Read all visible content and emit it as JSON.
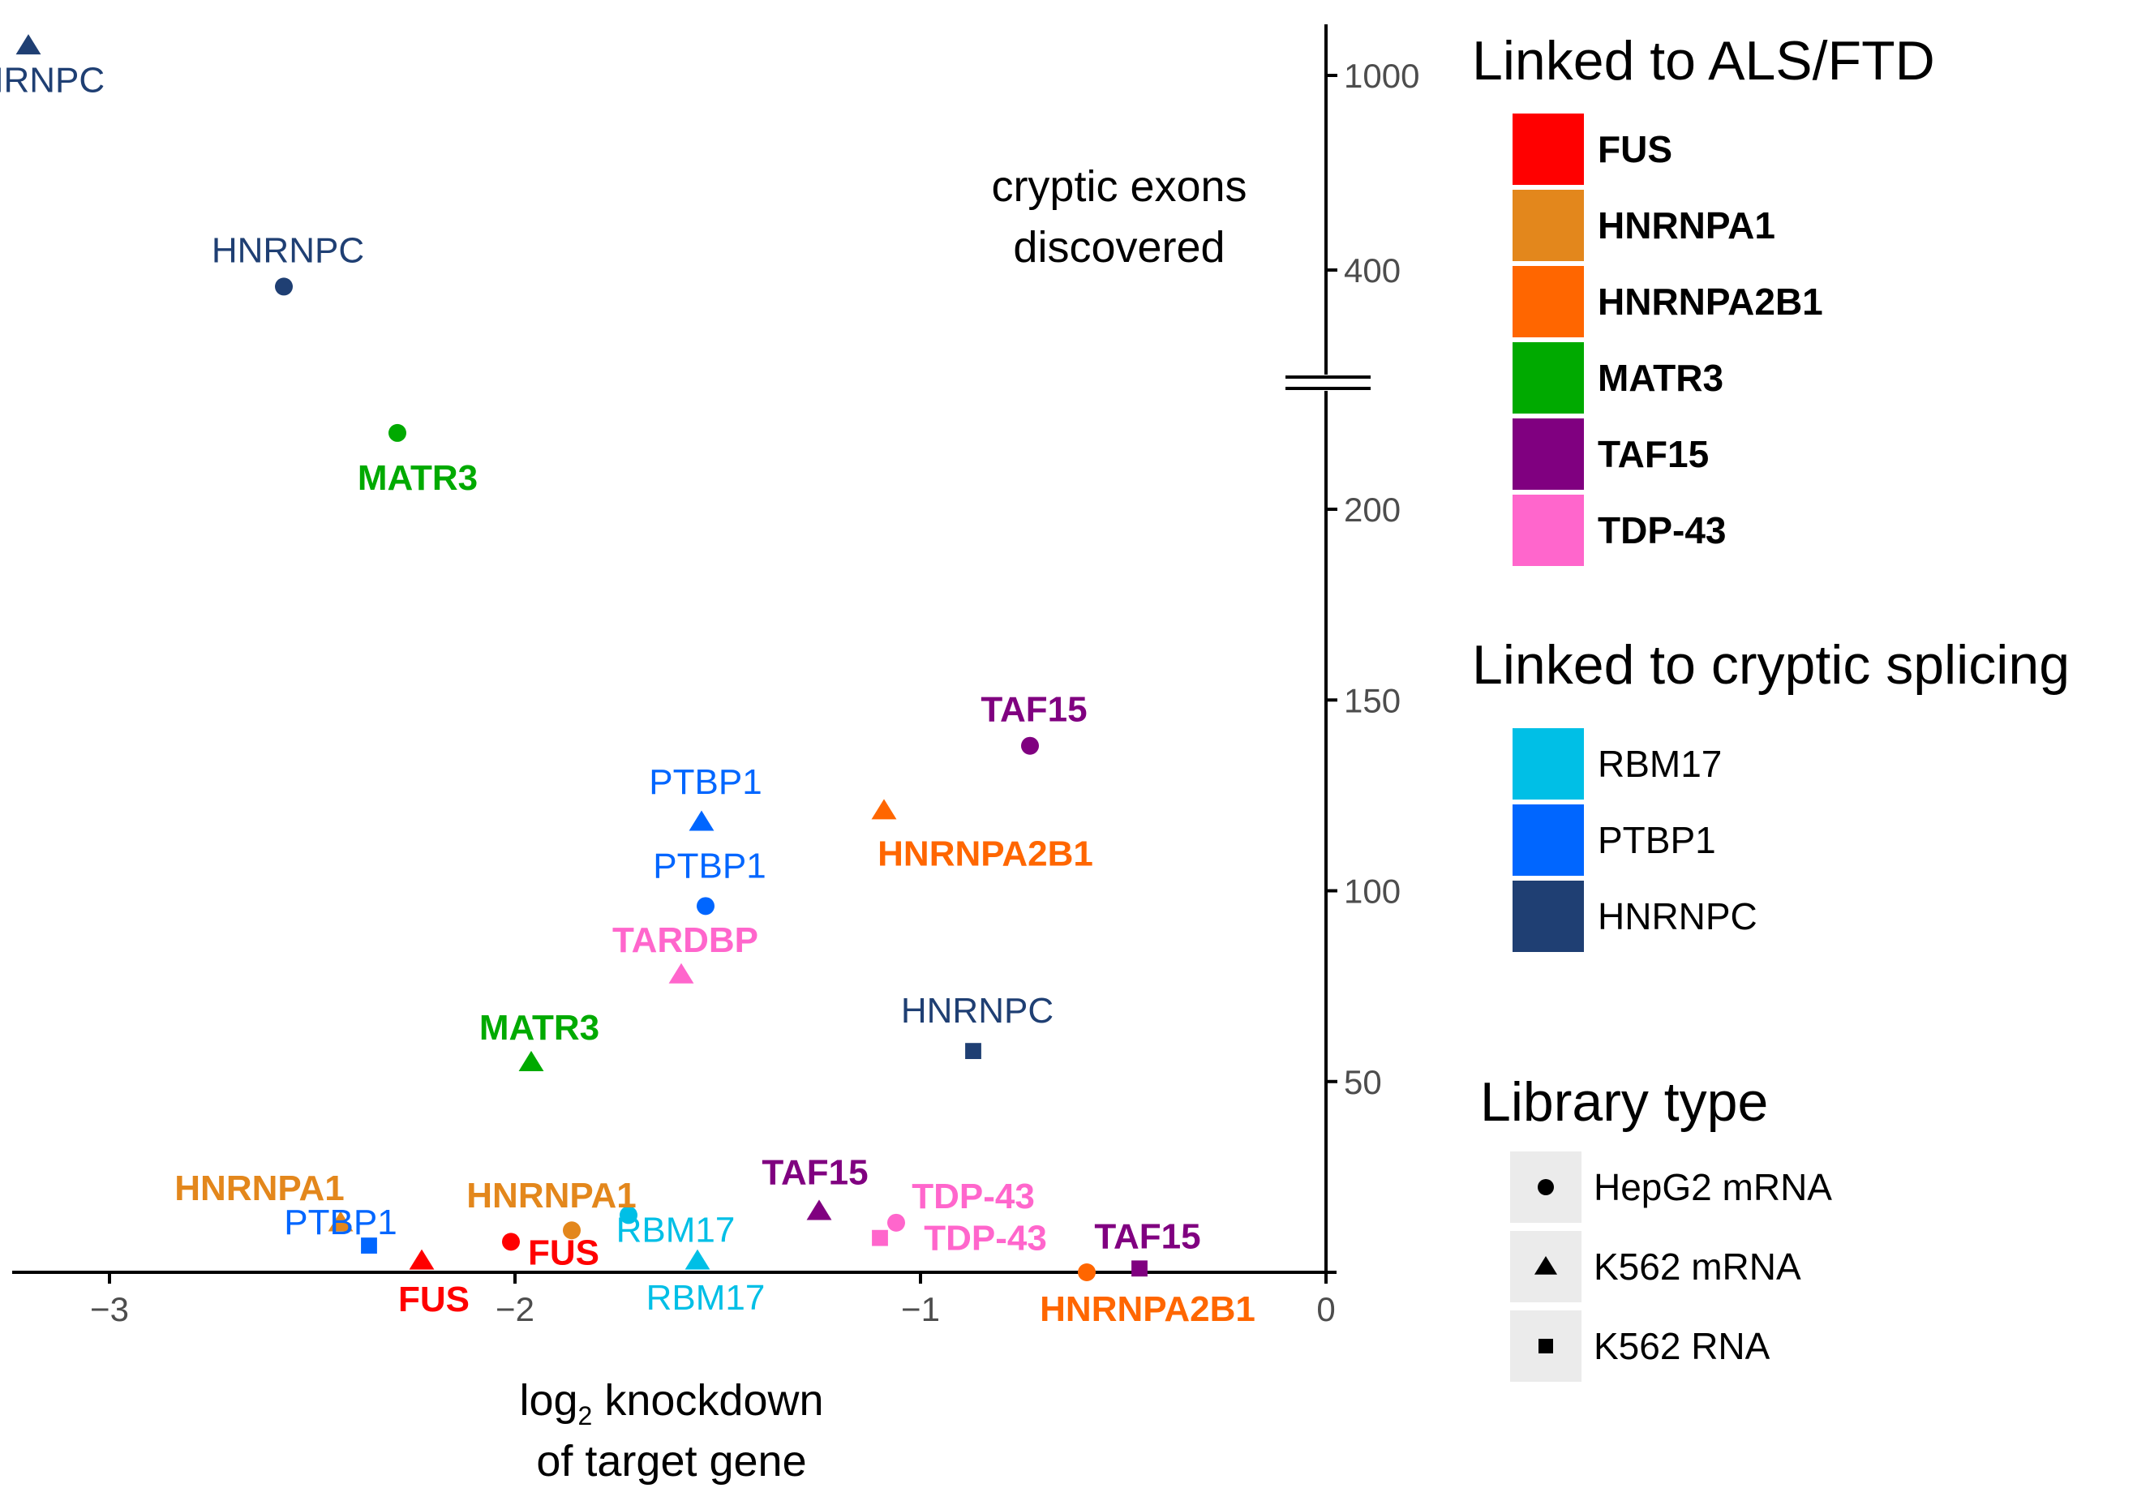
{
  "chart_data": {
    "type": "scatter",
    "xlabel_line1": "log",
    "xlabel_sub": "2",
    "xlabel_line1_rest": " knockdown",
    "xlabel_line2": "of target gene",
    "ylabel_line1": "cryptic exons",
    "ylabel_line2": "discovered",
    "x_ticks": [
      {
        "value": -3,
        "label": "−3"
      },
      {
        "value": -2,
        "label": "−2"
      },
      {
        "value": -1,
        "label": "−1"
      },
      {
        "value": 0,
        "label": "0"
      }
    ],
    "y_ticks": [
      {
        "value": 50,
        "label": "50"
      },
      {
        "value": 100,
        "label": "100"
      },
      {
        "value": 150,
        "label": "150"
      },
      {
        "value": 200,
        "label": "200"
      },
      {
        "value": 400,
        "label": "400"
      },
      {
        "value": 1000,
        "label": "1000"
      }
    ],
    "xlim": [
      -3.3,
      0
    ],
    "ylim_lower": [
      0,
      220
    ],
    "ylim_upper": [
      290,
      1150
    ],
    "y_axis_break": true,
    "grid": false,
    "legend_placement": "right",
    "colors": {
      "FUS": "#ff0000",
      "HNRNPA1": "#e3871c",
      "HNRNPA2B1": "#ff6600",
      "MATR3": "#00aa00",
      "TAF15": "#800080",
      "TDP-43": "#ff66cc",
      "RBM17": "#00bfe6",
      "PTBP1": "#0066ff",
      "HNRNPC": "#1f3f73"
    },
    "points": [
      {
        "gene": "HNRNPC",
        "label": "HNRNPC",
        "library": "K562 mRNA",
        "x": -3.2,
        "y": 1150,
        "bold": false
      },
      {
        "gene": "HNRNPC",
        "label": "HNRNPC",
        "library": "HepG2 mRNA",
        "x": -2.57,
        "y": 370,
        "bold": false
      },
      {
        "gene": "MATR3",
        "label": "MATR3",
        "library": "HepG2 mRNA",
        "x": -2.29,
        "y": 220,
        "bold": true
      },
      {
        "gene": "TAF15",
        "label": "TAF15",
        "library": "HepG2 mRNA",
        "x": -0.73,
        "y": 138,
        "bold": true
      },
      {
        "gene": "HNRNPA2B1",
        "label": "HNRNPA2B1",
        "library": "K562 mRNA",
        "x": -1.09,
        "y": 121,
        "bold": true
      },
      {
        "gene": "PTBP1",
        "label": "PTBP1",
        "library": "K562 mRNA",
        "x": -1.54,
        "y": 118,
        "bold": false
      },
      {
        "gene": "PTBP1",
        "label": "PTBP1",
        "library": "HepG2 mRNA",
        "x": -1.53,
        "y": 96,
        "bold": false
      },
      {
        "gene": "TDP-43",
        "label": "TARDBP",
        "library": "K562 mRNA",
        "x": -1.59,
        "y": 78,
        "bold": true
      },
      {
        "gene": "HNRNPC",
        "label": "HNRNPC",
        "library": "K562 RNA",
        "x": -0.87,
        "y": 58,
        "bold": false
      },
      {
        "gene": "MATR3",
        "label": "MATR3",
        "library": "K562 mRNA",
        "x": -1.96,
        "y": 55,
        "bold": true
      },
      {
        "gene": "TAF15",
        "label": "TAF15",
        "library": "K562 mRNA",
        "x": -1.25,
        "y": 16,
        "bold": true
      },
      {
        "gene": "RBM17",
        "label": "RBM17",
        "library": "HepG2 mRNA",
        "x": -1.72,
        "y": 15,
        "bold": false
      },
      {
        "gene": "TDP-43",
        "label": "TDP-43",
        "library": "HepG2 mRNA",
        "x": -1.06,
        "y": 13,
        "bold": true
      },
      {
        "gene": "HNRNPA1",
        "label": "HNRNPA1",
        "library": "K562 mRNA",
        "x": -2.43,
        "y": 13,
        "bold": true
      },
      {
        "gene": "HNRNPA1",
        "label": "HNRNPA1",
        "library": "HepG2 mRNA",
        "x": -1.86,
        "y": 11,
        "bold": true
      },
      {
        "gene": "TDP-43",
        "label": "TDP-43",
        "library": "K562 RNA",
        "x": -1.1,
        "y": 9,
        "bold": true
      },
      {
        "gene": "FUS",
        "label": "FUS",
        "library": "HepG2 mRNA",
        "x": -2.01,
        "y": 8,
        "bold": true
      },
      {
        "gene": "PTBP1",
        "label": "PTBP1",
        "library": "K562 RNA",
        "x": -2.36,
        "y": 7,
        "bold": false
      },
      {
        "gene": "FUS",
        "label": "FUS",
        "library": "K562 mRNA",
        "x": -2.23,
        "y": 3,
        "bold": true
      },
      {
        "gene": "RBM17",
        "label": "RBM17",
        "library": "K562 mRNA",
        "x": -1.55,
        "y": 3,
        "bold": false
      },
      {
        "gene": "TAF15",
        "label": "TAF15",
        "library": "K562 RNA",
        "x": -0.46,
        "y": 1,
        "bold": true
      },
      {
        "gene": "HNRNPA2B1",
        "label": "HNRNPA2B1",
        "library": "HepG2 mRNA",
        "x": -0.59,
        "y": 0,
        "bold": true
      }
    ],
    "legends": [
      {
        "title": "Linked to ALS/FTD",
        "type": "color",
        "bold": true,
        "items": [
          "FUS",
          "HNRNPA1",
          "HNRNPA2B1",
          "MATR3",
          "TAF15",
          "TDP-43"
        ]
      },
      {
        "title": "Linked to cryptic splicing",
        "type": "color",
        "bold": false,
        "items": [
          "RBM17",
          "PTBP1",
          "HNRNPC"
        ]
      },
      {
        "title": "Library type",
        "type": "shape",
        "bold": false,
        "items": [
          {
            "label": "HepG2 mRNA",
            "shape": "circle"
          },
          {
            "label": "K562 mRNA",
            "shape": "triangle"
          },
          {
            "label": "K562 RNA",
            "shape": "square"
          }
        ]
      }
    ]
  }
}
